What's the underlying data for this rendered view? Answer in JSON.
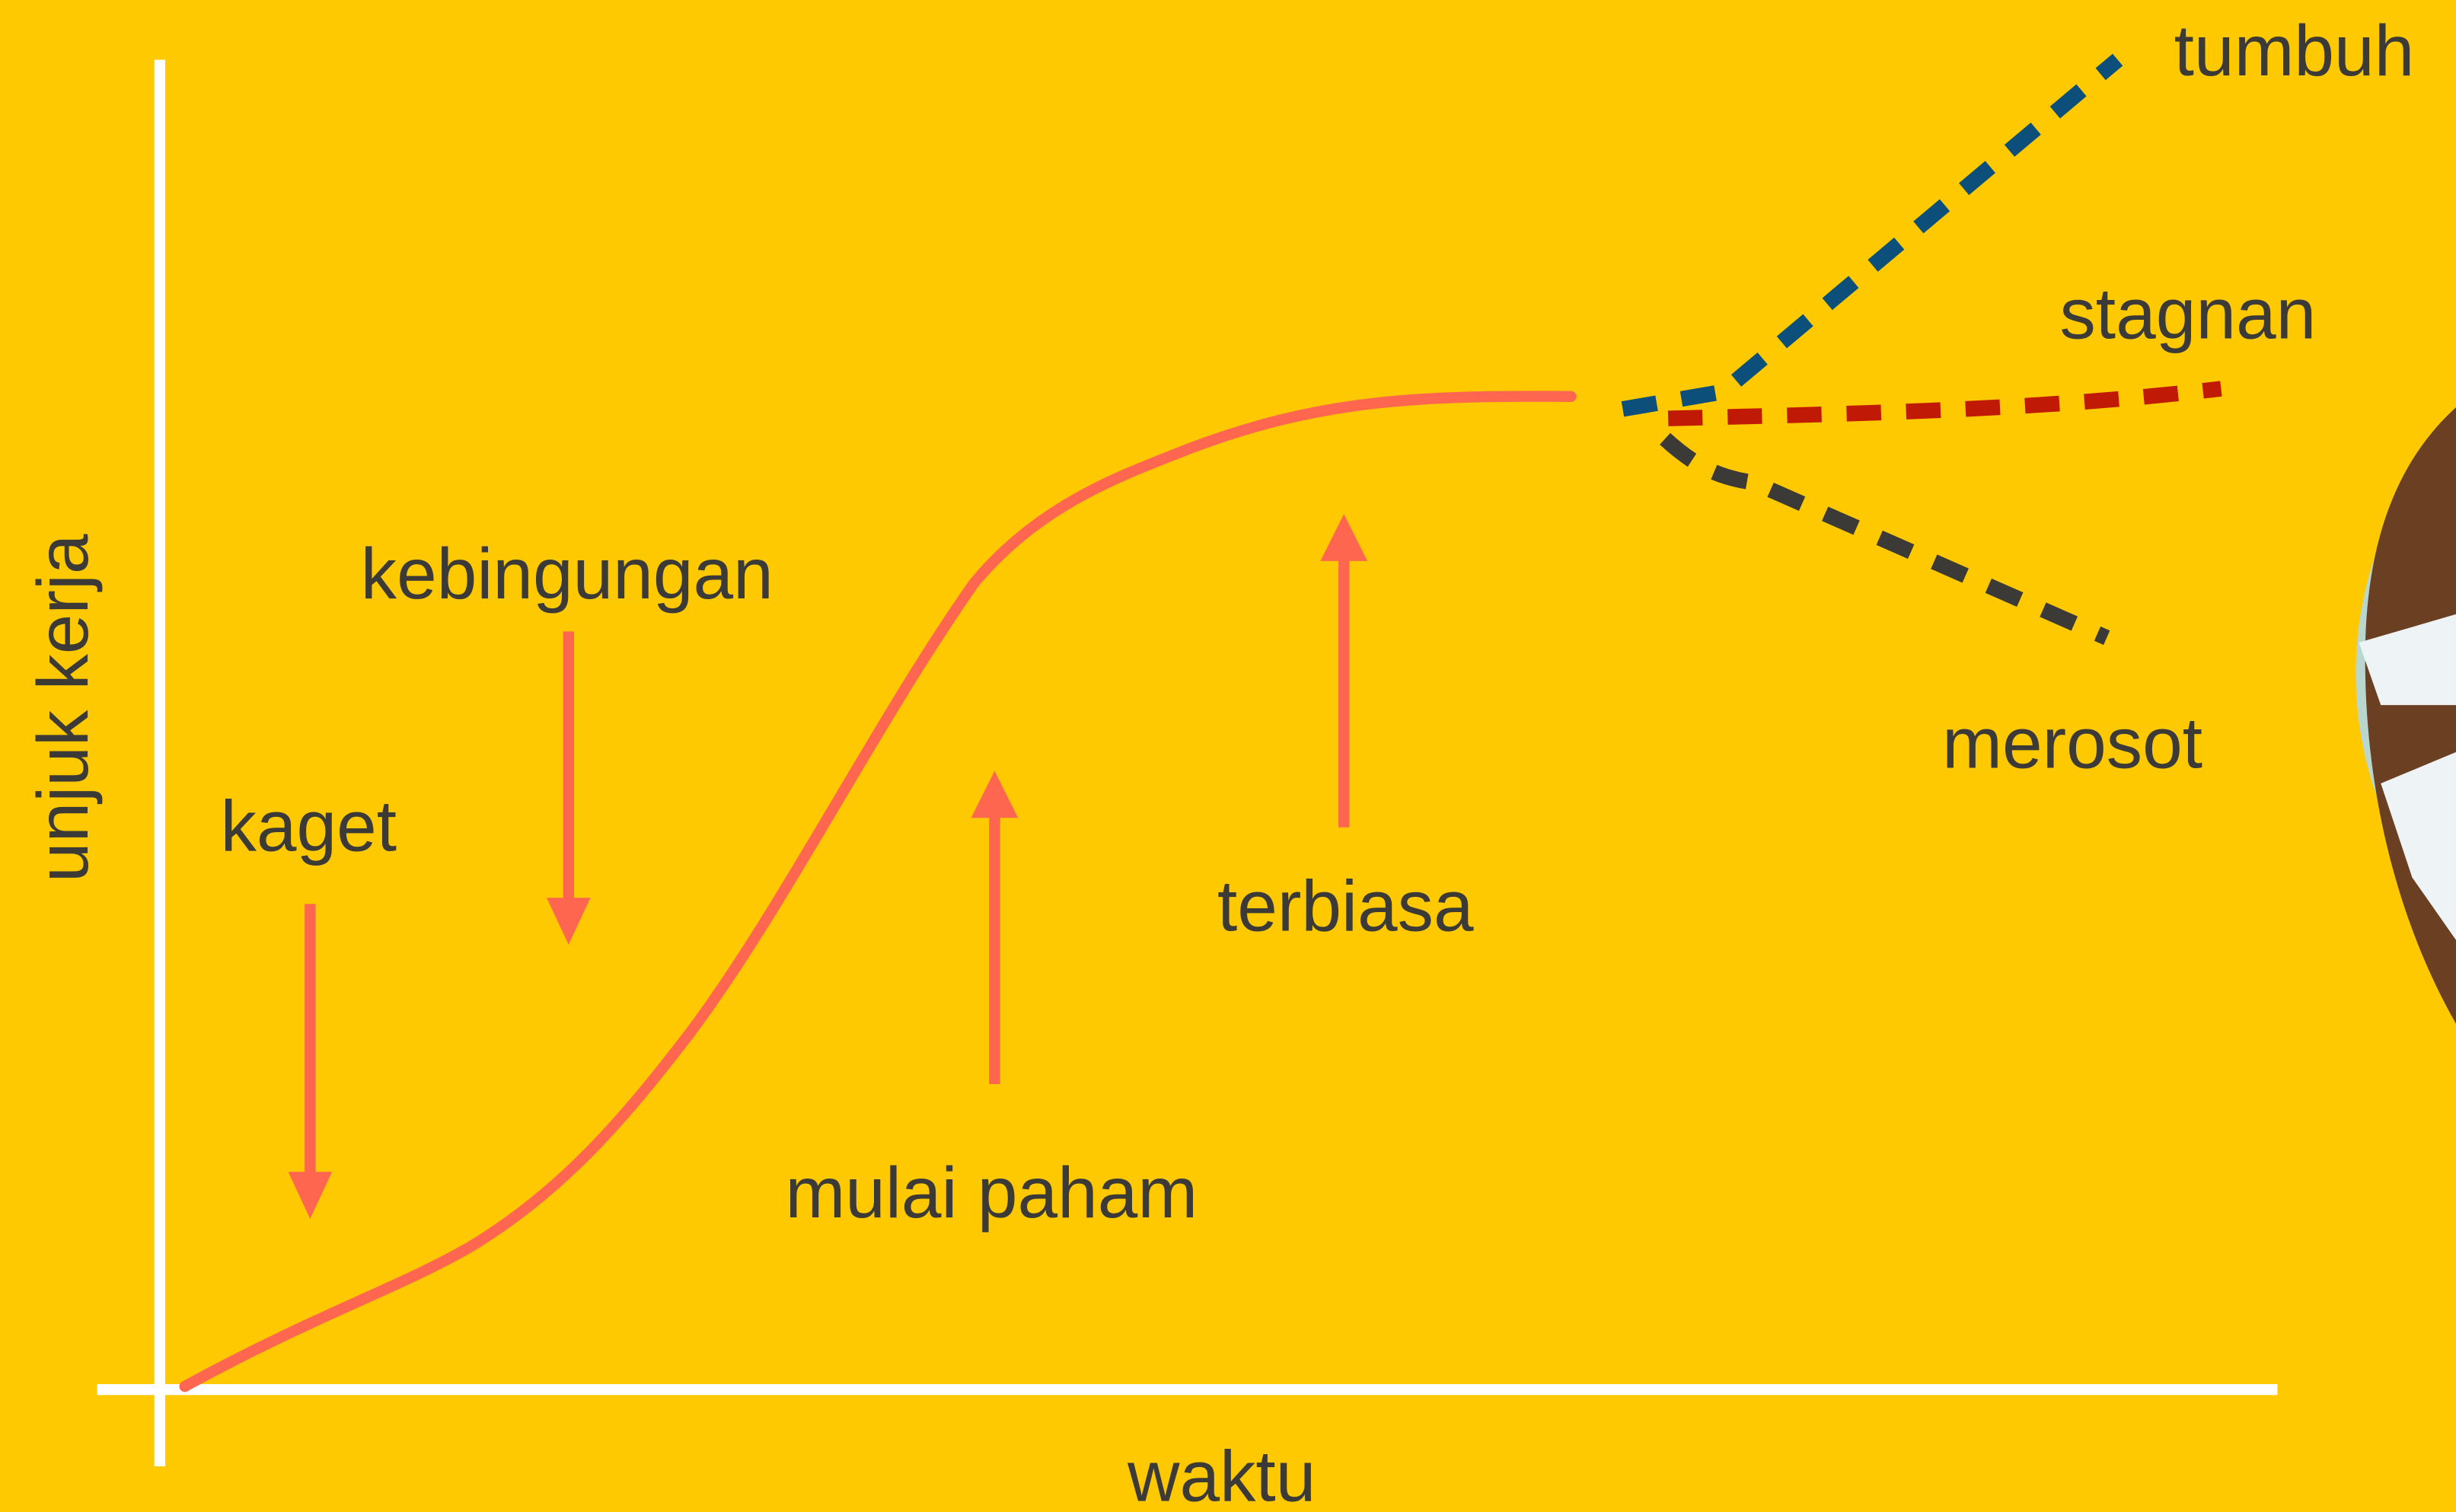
{
  "axes": {
    "y_label": "unjuk kerja",
    "x_label": "waktu"
  },
  "stages": [
    {
      "label": "kaget"
    },
    {
      "label": "kebingungan"
    },
    {
      "label": "mulai paham"
    },
    {
      "label": "terbiasa"
    }
  ],
  "outcomes": [
    {
      "label": "tumbuh"
    },
    {
      "label": "stagnan"
    },
    {
      "label": "merosot"
    }
  ]
}
